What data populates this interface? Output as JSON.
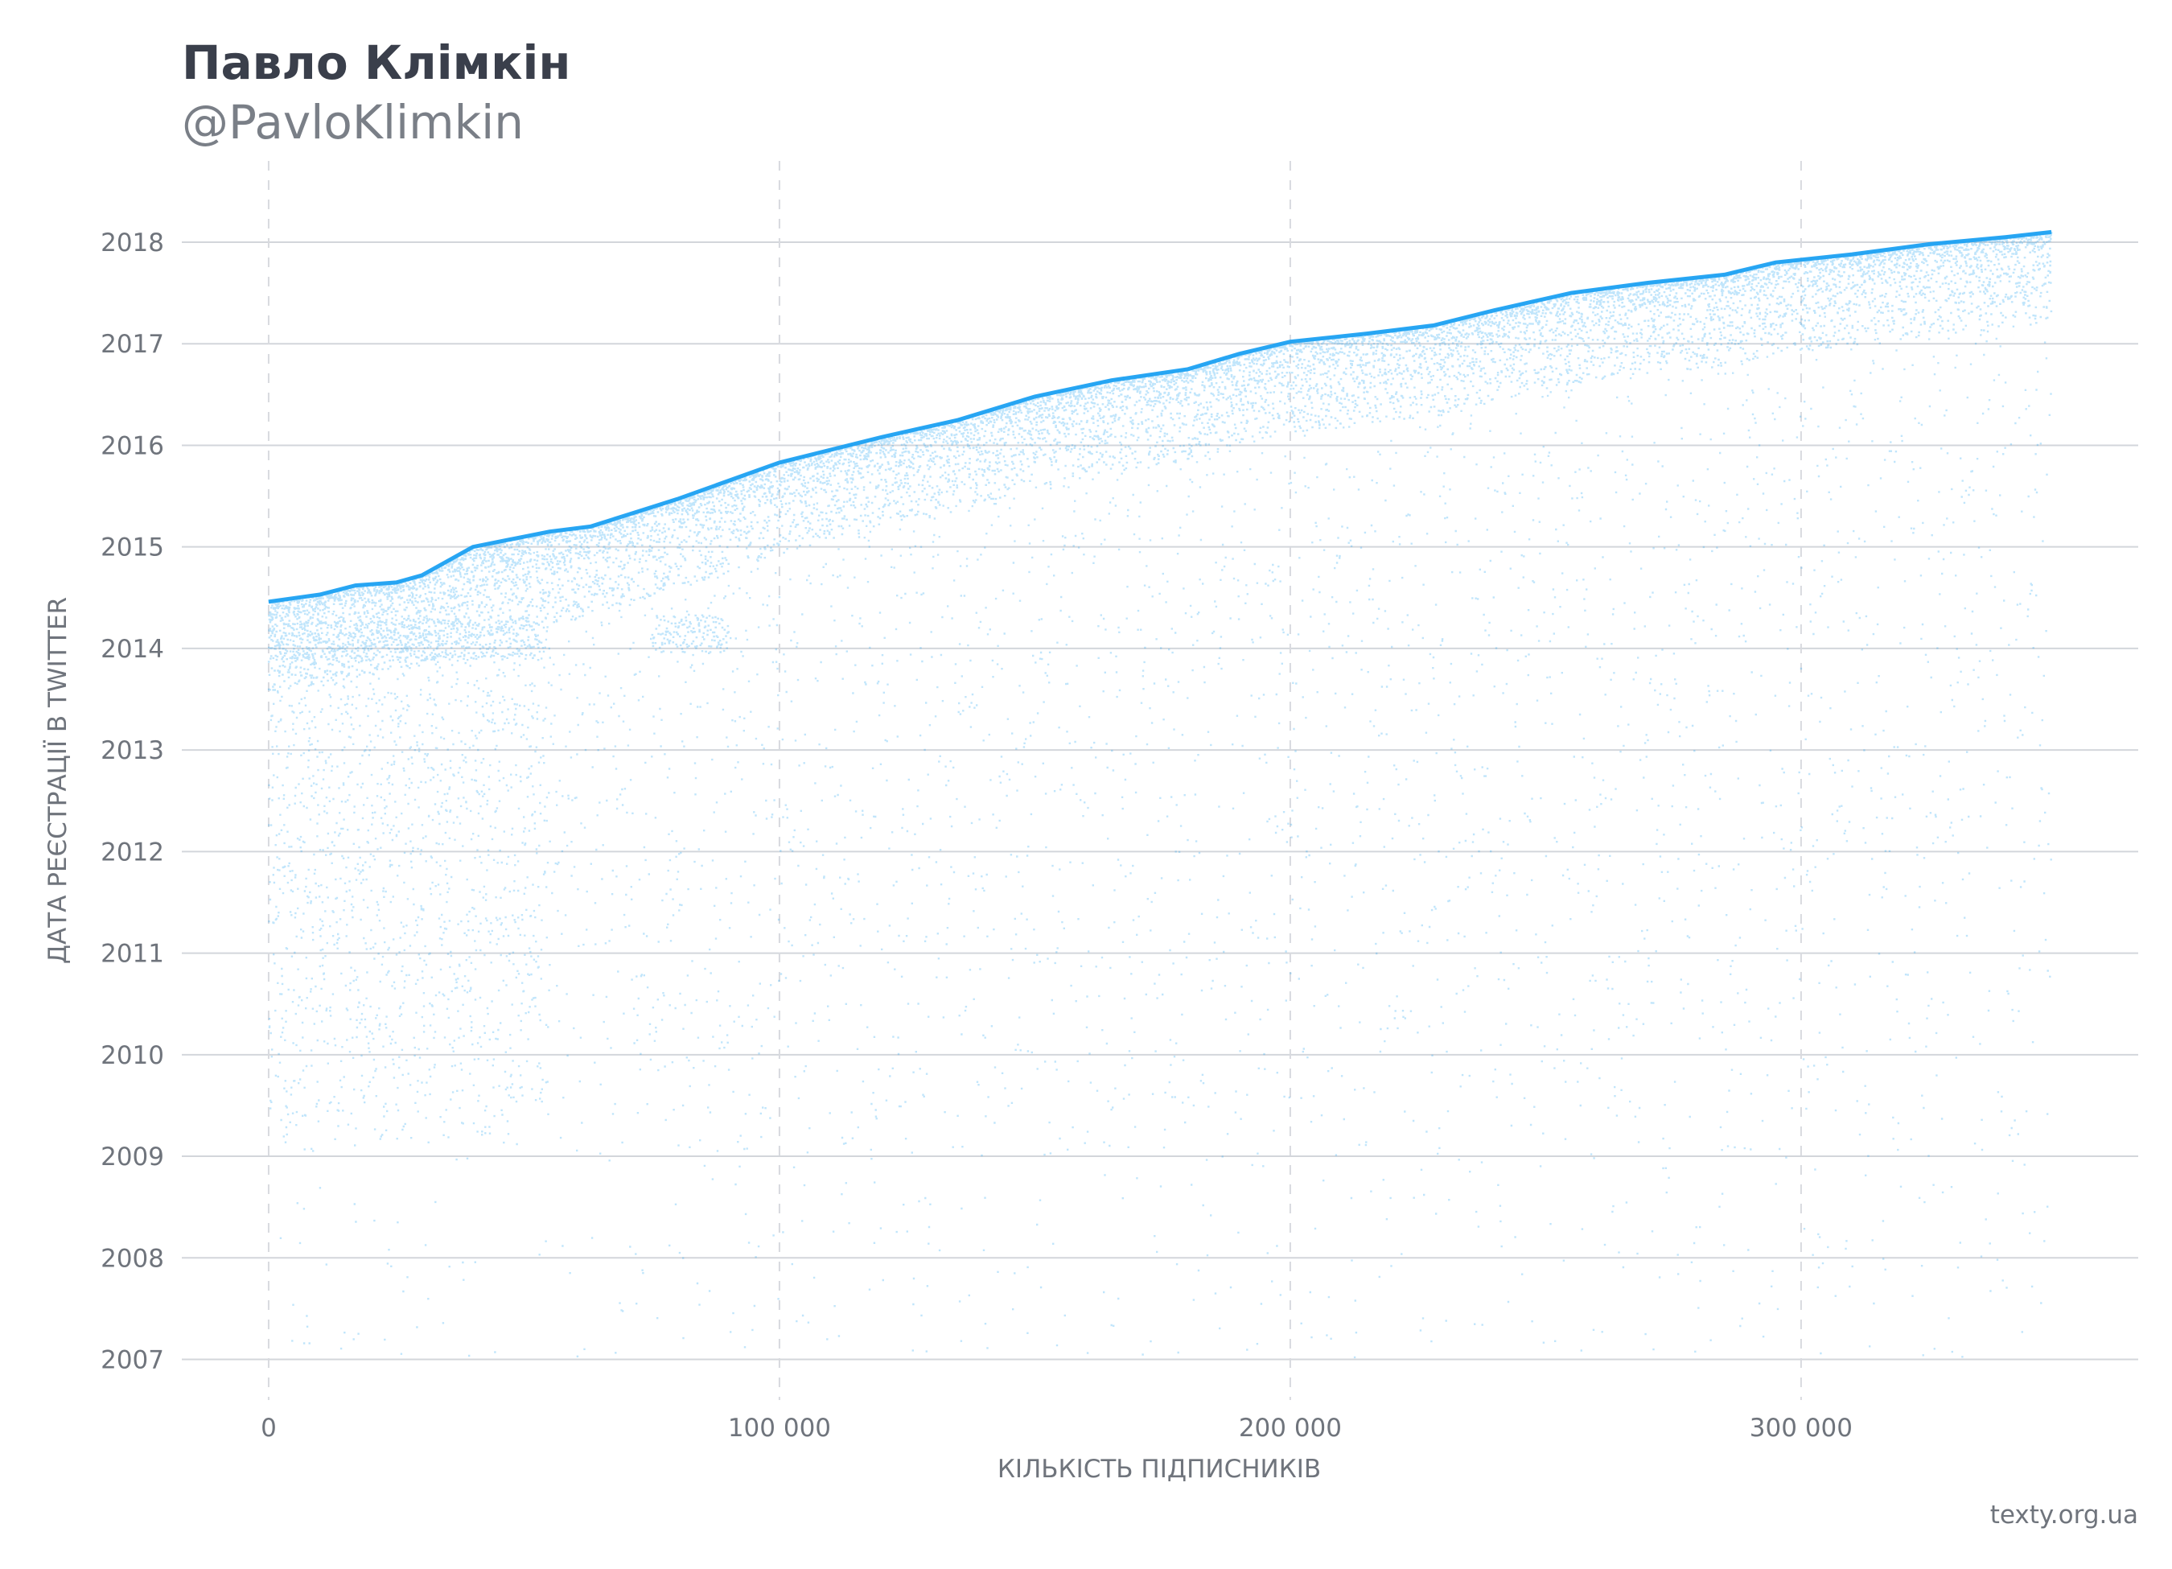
{
  "header": {
    "title": "Павло Клімкін",
    "subtitle": "@PavloKlimkin"
  },
  "footer": {
    "source": "texty.org.ua"
  },
  "chart_data": {
    "type": "scatter",
    "xlabel": "КІЛЬКІСТЬ ПІДПИСНИКІВ",
    "ylabel": "ДАТА РЕЄСТРАЦІЇ В TWITTER",
    "xlim": [
      -17000,
      366000
    ],
    "ylim": [
      2006.6,
      2018.8
    ],
    "x_ticks": [
      0,
      100000,
      200000,
      300000
    ],
    "x_tick_labels": [
      "0",
      "100 000",
      "200 000",
      "300 000"
    ],
    "y_ticks": [
      2007,
      2008,
      2009,
      2010,
      2011,
      2012,
      2013,
      2014,
      2015,
      2016,
      2017,
      2018
    ],
    "y_tick_labels": [
      "2007",
      "2008",
      "2009",
      "2010",
      "2011",
      "2012",
      "2013",
      "2014",
      "2015",
      "2016",
      "2017",
      "2018"
    ],
    "grid": {
      "horizontal": true,
      "vertical_dashed": true
    },
    "point_color": "#1da1f2",
    "total_followers": 349000,
    "upper_envelope": {
      "x": [
        0,
        10000,
        17000,
        25000,
        30000,
        40000,
        55000,
        63000,
        80000,
        100000,
        120000,
        135000,
        150000,
        165000,
        180000,
        190000,
        200000,
        215000,
        228000,
        240000,
        255000,
        270000,
        285000,
        295000,
        310000,
        325000,
        340000,
        349000
      ],
      "y": [
        2014.46,
        2014.53,
        2014.62,
        2014.65,
        2014.72,
        2015.0,
        2015.15,
        2015.2,
        2015.47,
        2015.83,
        2016.08,
        2016.25,
        2016.48,
        2016.64,
        2016.75,
        2016.9,
        2017.02,
        2017.1,
        2017.18,
        2017.33,
        2017.5,
        2017.6,
        2017.68,
        2017.8,
        2017.88,
        2017.98,
        2018.05,
        2018.1
      ]
    },
    "dense_bands": [
      {
        "x_from": 0,
        "x_to": 53000,
        "y_from": 2013.88,
        "y_to": 2014.28
      },
      {
        "x_from": 75000,
        "x_to": 90000,
        "y_from": 2013.95,
        "y_to": 2014.33
      }
    ],
    "first_registration_year_dense": 2009.1
  }
}
